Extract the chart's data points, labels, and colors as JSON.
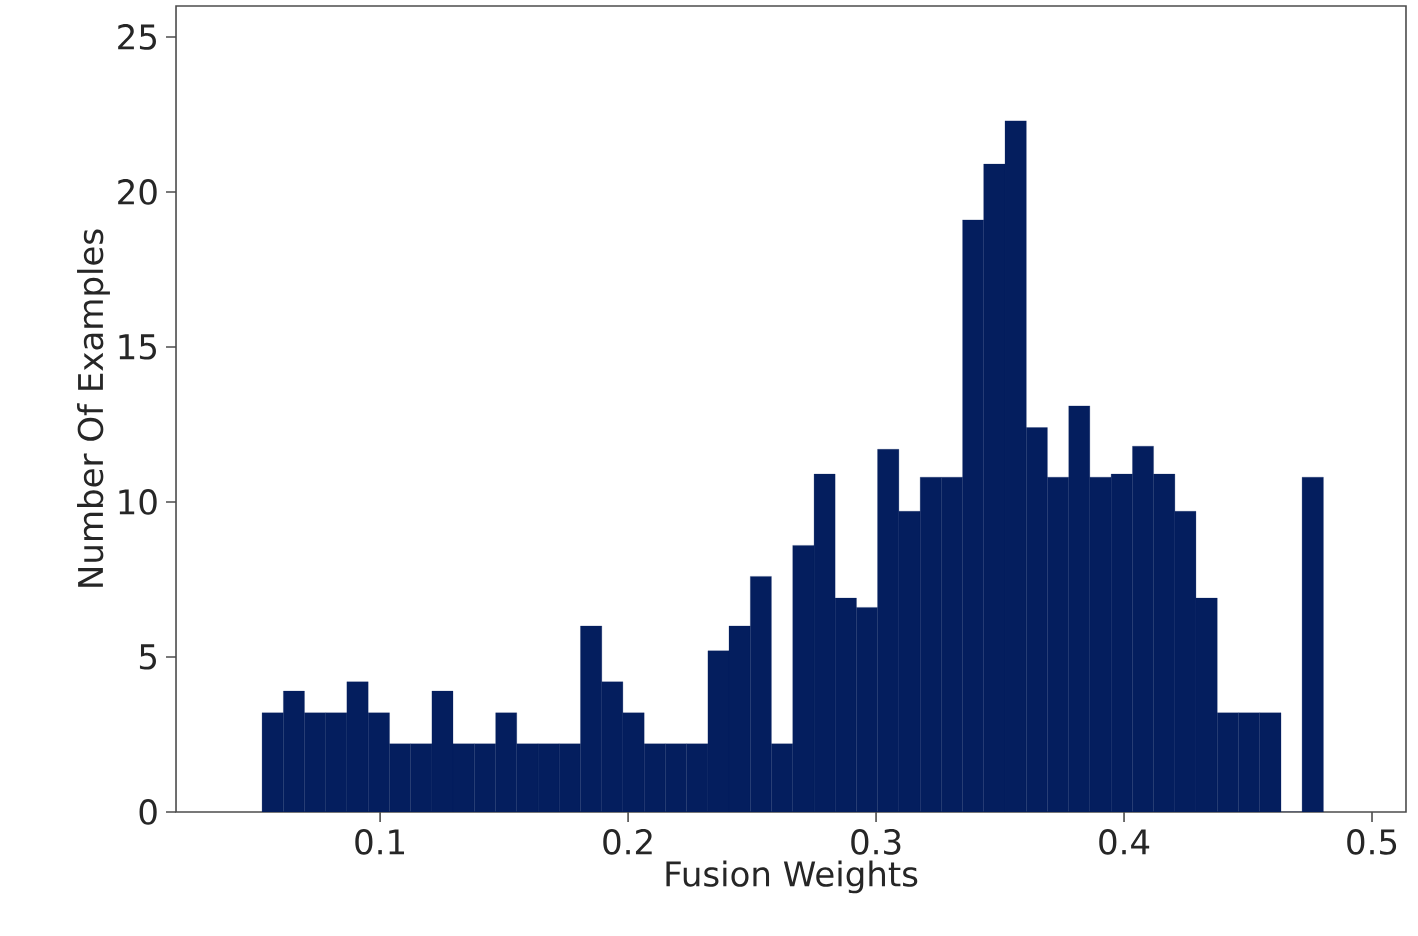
{
  "chart_data": {
    "type": "histogram",
    "xlabel": "Fusion Weights",
    "ylabel": "Number Of Examples",
    "color": "#041e5e",
    "bins": [
      0.0524,
      0.061,
      0.0695,
      0.0781,
      0.0866,
      0.0952,
      0.1038,
      0.1123,
      0.1209,
      0.1294,
      0.138,
      0.1466,
      0.1551,
      0.1637,
      0.1722,
      0.1808,
      0.1894,
      0.1979,
      0.2065,
      0.215,
      0.2236,
      0.2322,
      0.2407,
      0.2493,
      0.2578,
      0.2664,
      0.275,
      0.2835,
      0.2921,
      0.3006,
      0.3092,
      0.3178,
      0.3263,
      0.3349,
      0.3434,
      0.352,
      0.3606,
      0.3691,
      0.3777,
      0.3862,
      0.3948,
      0.4034,
      0.4119,
      0.4205,
      0.429,
      0.4376,
      0.4462,
      0.4547,
      0.4633,
      0.4718,
      0.4804
    ],
    "values": [
      3.2,
      3.9,
      3.2,
      3.2,
      4.2,
      3.2,
      2.2,
      2.2,
      3.9,
      2.2,
      2.2,
      3.2,
      2.2,
      2.2,
      2.2,
      6.0,
      4.2,
      3.2,
      2.2,
      2.2,
      2.2,
      5.2,
      6.0,
      7.6,
      2.2,
      8.6,
      10.9,
      6.9,
      6.6,
      11.7,
      9.7,
      10.8,
      10.8,
      19.1,
      20.9,
      22.3,
      12.4,
      10.8,
      13.1,
      10.8,
      10.9,
      11.8,
      10.9,
      9.7,
      6.9,
      3.2,
      3.2,
      3.2,
      0,
      10.8
    ],
    "xlim": [
      0.0177,
      0.5137
    ],
    "ylim": [
      0,
      26
    ],
    "xticks": [
      0.1,
      0.2,
      0.3,
      0.4,
      0.5
    ],
    "yticks": [
      0,
      5,
      10,
      15,
      20,
      25
    ]
  }
}
